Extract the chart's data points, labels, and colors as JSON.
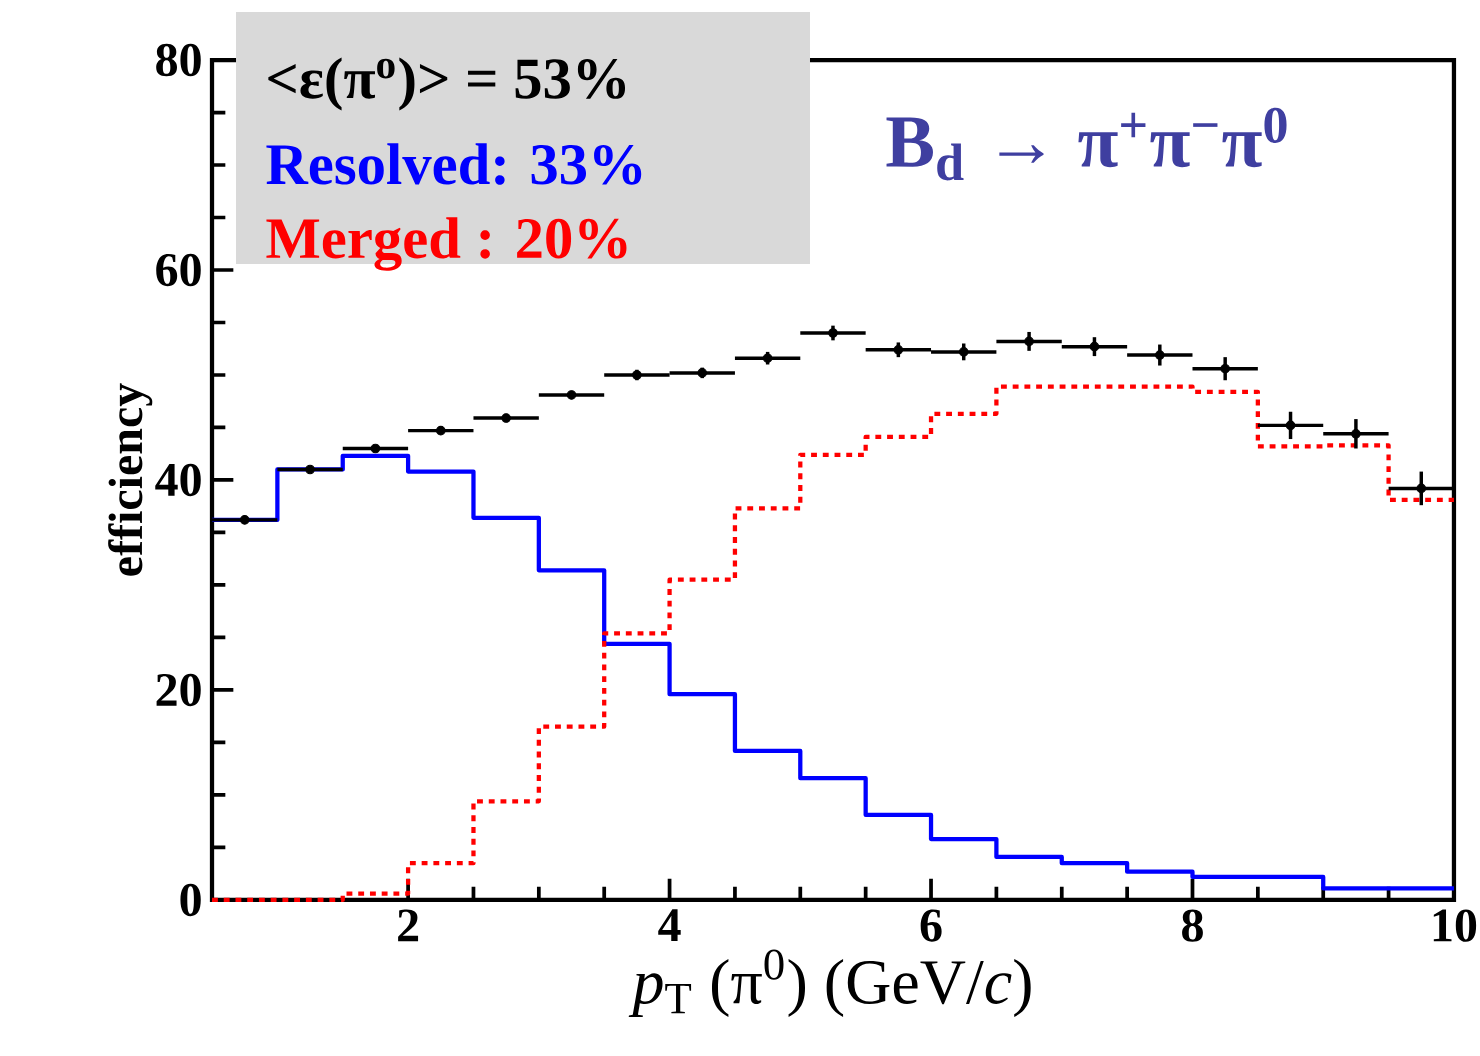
{
  "chart_data": {
    "type": "histogram",
    "title": "B$_{d}$ → π$^{+}$π$^{−}$π$^{0}$",
    "xlabel": "*p*$_{T}$ (π$^{0}$)  (GeV/*c*)",
    "ylabel": "efficiency",
    "annotations": [
      "<ε(π$^{o}$)> =  53%",
      "Resolved: 33%",
      "Merged  : 20%"
    ],
    "bins": [
      0.5,
      1,
      1.5,
      2,
      2.5,
      3,
      3.5,
      4,
      4.5,
      5,
      5.5,
      6,
      6.5,
      7,
      7.5,
      8,
      8.5,
      9,
      9.5,
      10
    ],
    "series": [
      {
        "type": "scatter",
        "color": "#000000",
        "x": [
          0.75,
          1.25,
          1.75,
          2.25,
          2.75,
          3.25,
          3.75,
          4.25,
          4.75,
          5.25,
          5.75,
          6.25,
          6.75,
          7.25,
          7.75,
          8.25,
          8.75,
          9.25,
          9.75
        ],
        "values": [
          36.2,
          41.0,
          43.0,
          44.7,
          45.9,
          48.1,
          50.0,
          50.2,
          51.6,
          54.0,
          52.4,
          52.2,
          53.2,
          52.7,
          51.9,
          50.6,
          45.2,
          44.4,
          39.2
        ],
        "errors": [
          null,
          null,
          null,
          0.3,
          0.4,
          0.4,
          0.5,
          0.5,
          0.6,
          0.7,
          0.7,
          0.8,
          0.9,
          0.9,
          1.0,
          1.1,
          1.3,
          1.4,
          1.6
        ],
        "xerrors": [
          0.25,
          0.25,
          0.25,
          0.25,
          0.25,
          0.25,
          0.25,
          0.25,
          0.25,
          0.25,
          0.25,
          0.25,
          0.25,
          0.25,
          0.25,
          0.25,
          0.25,
          0.25,
          0.25
        ]
      },
      {
        "type": "histogram",
        "color": "#0000ff",
        "line_style": "solid",
        "values": [
          36.2,
          41.0,
          42.3,
          40.8,
          36.4,
          31.4,
          24.4,
          19.6,
          14.2,
          11.6,
          8.1,
          5.8,
          4.1,
          3.5,
          2.7,
          2.2,
          2.2,
          1.1,
          1.1
        ]
      },
      {
        "type": "histogram",
        "color": "#ff0000",
        "line_style": "dotted",
        "values": [
          0,
          0,
          0.6,
          3.5,
          9.4,
          16.5,
          25.4,
          30.5,
          37.3,
          42.4,
          44.1,
          46.3,
          48.9,
          48.9,
          48.9,
          48.4,
          43.2,
          43.3,
          38.1
        ]
      }
    ],
    "xlim": [
      0.5,
      10
    ],
    "ylim": [
      0,
      80
    ],
    "xticks": [
      2,
      4,
      6,
      8,
      10
    ],
    "yticks": [
      0,
      20,
      40,
      60,
      80
    ],
    "marker": "circle",
    "grid": false
  }
}
